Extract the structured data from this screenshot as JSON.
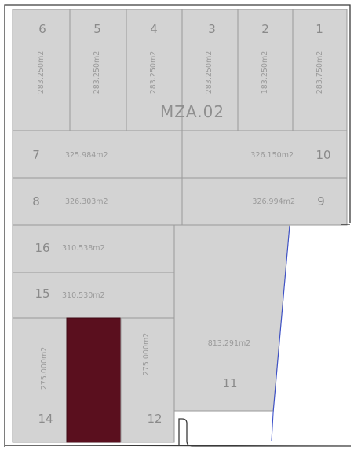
{
  "block_label": "MZA.02",
  "colors": {
    "lot_fill": "#d3d3d3",
    "lot_stroke": "#9a9a9a",
    "selected_fill": "#5a0f1e",
    "outline": "#3a3a3a",
    "street_edge": "#3b4fc9"
  },
  "lots": [
    {
      "id": "lot-6",
      "number": "6",
      "area": "283.250m2"
    },
    {
      "id": "lot-5",
      "number": "5",
      "area": "283.250m2"
    },
    {
      "id": "lot-4",
      "number": "4",
      "area": "283.250m2"
    },
    {
      "id": "lot-3",
      "number": "3",
      "area": "283.250m2"
    },
    {
      "id": "lot-2",
      "number": "2",
      "area": "183.250m2"
    },
    {
      "id": "lot-1",
      "number": "1",
      "area": "283.750m2"
    },
    {
      "id": "lot-7",
      "number": "7",
      "area": "325.984m2"
    },
    {
      "id": "lot-10",
      "number": "10",
      "area": "326.150m2"
    },
    {
      "id": "lot-8",
      "number": "8",
      "area": "326.303m2"
    },
    {
      "id": "lot-9",
      "number": "9",
      "area": "326.994m2"
    },
    {
      "id": "lot-16",
      "number": "16",
      "area": "310.538m2"
    },
    {
      "id": "lot-15",
      "number": "15",
      "area": "310.530m2"
    },
    {
      "id": "lot-14",
      "number": "14",
      "area": "275.000m2"
    },
    {
      "id": "lot-13",
      "number": "",
      "area": "",
      "selected": true
    },
    {
      "id": "lot-12",
      "number": "12",
      "area": "275.000m2"
    },
    {
      "id": "lot-11",
      "number": "11",
      "area": "813.291m2"
    }
  ]
}
